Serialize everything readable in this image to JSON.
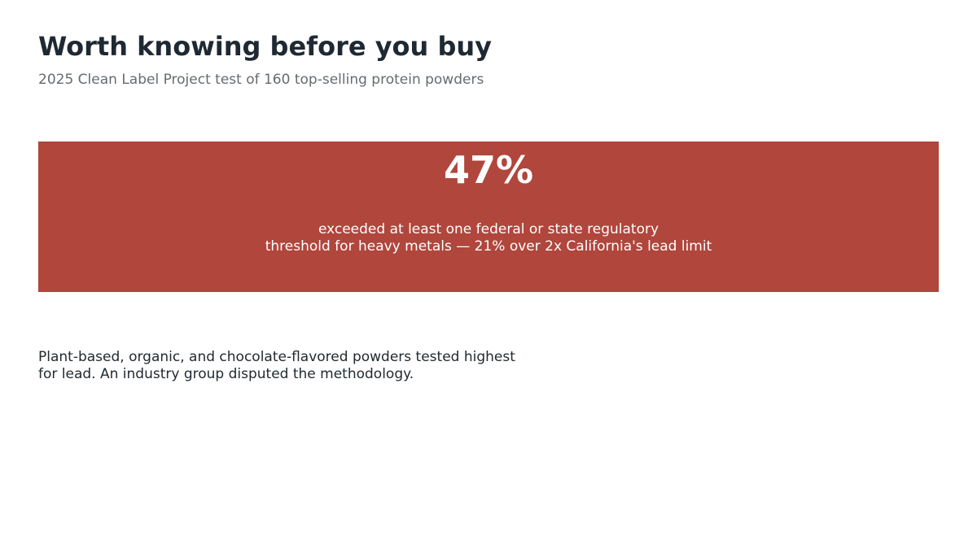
{
  "header": {
    "title": "Worth knowing before you buy",
    "subtitle": "2025 Clean Label Project test of 160 top-selling protein powders"
  },
  "callout": {
    "stat": "47%",
    "description_lines": [
      "exceeded at least one federal or state regulatory",
      "threshold for heavy metals — 21% over 2x California's lead limit"
    ]
  },
  "footnote": {
    "lines": [
      "Plant-based, organic, and chocolate-flavored powders tested highest",
      "for lead. An industry group disputed the methodology."
    ]
  }
}
